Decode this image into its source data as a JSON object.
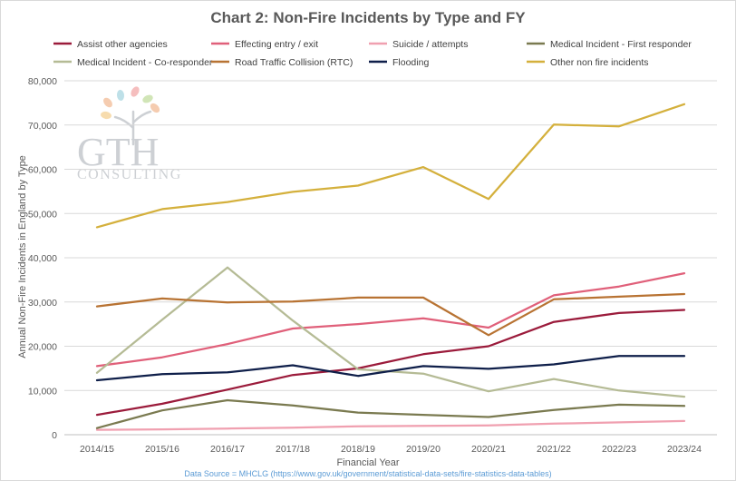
{
  "chart_data": {
    "type": "line",
    "title": "Chart 2: Non-Fire Incidents by Type and FY",
    "xlabel": "Financial Year",
    "ylabel": "Annual Non-Fire Incidents in England by Type",
    "ylim": [
      0,
      80000
    ],
    "yticks": [
      0,
      10000,
      20000,
      30000,
      40000,
      50000,
      60000,
      70000,
      80000
    ],
    "ytick_labels": [
      "0",
      "10,000",
      "20,000",
      "30,000",
      "40,000",
      "50,000",
      "60,000",
      "70,000",
      "80,000"
    ],
    "grid": "horizontal",
    "legend_position": "top",
    "categories": [
      "2014/15",
      "2015/16",
      "2016/17",
      "2017/18",
      "2018/19",
      "2019/20",
      "2020/21",
      "2021/22",
      "2022/23",
      "2023/24"
    ],
    "series": [
      {
        "name": "Assist other agencies",
        "color": "#9b1b3b",
        "values": [
          4500,
          7000,
          10200,
          13500,
          15000,
          18200,
          20000,
          25500,
          27500,
          28200
        ]
      },
      {
        "name": "Effecting entry / exit",
        "color": "#e0607a",
        "values": [
          15500,
          17500,
          20500,
          24000,
          25000,
          26300,
          24200,
          31500,
          33500,
          36500
        ]
      },
      {
        "name": "Suicide / attempts",
        "color": "#f0a0b0",
        "values": [
          1100,
          1200,
          1400,
          1600,
          1900,
          2000,
          2100,
          2500,
          2800,
          3100
        ]
      },
      {
        "name": "Medical Incident - First responder",
        "color": "#7a7a50",
        "values": [
          1500,
          5500,
          7800,
          6600,
          5000,
          4500,
          4000,
          5600,
          6800,
          6500
        ]
      },
      {
        "name": "Medical Incident - Co-responder",
        "color": "#b5bb95",
        "values": [
          14000,
          26000,
          37800,
          25800,
          14800,
          13800,
          9800,
          12600,
          10000,
          8600
        ]
      },
      {
        "name": "Road Traffic Collision (RTC)",
        "color": "#b87333",
        "values": [
          29000,
          30800,
          29900,
          30100,
          31000,
          31000,
          22500,
          30600,
          31200,
          31800
        ]
      },
      {
        "name": "Flooding",
        "color": "#0f1f4a",
        "values": [
          12300,
          13700,
          14100,
          15700,
          13300,
          15500,
          14900,
          15900,
          17800,
          17800
        ]
      },
      {
        "name": "Other non fire incidents",
        "color": "#d4b03c",
        "values": [
          46900,
          51000,
          52600,
          54900,
          56300,
          60500,
          53300,
          70100,
          69700,
          74700
        ]
      }
    ],
    "source": "Data Source = MHCLG (https://www.gov.uk/government/statistical-data-sets/fire-statistics-data-tables)"
  },
  "logo": {
    "line1": "GTH",
    "line2": "CONSULTING",
    "leaf_colors": [
      "#f4c7a8",
      "#b7dde6",
      "#f5b8b8",
      "#cde3b0",
      "#f7d9a6"
    ]
  }
}
